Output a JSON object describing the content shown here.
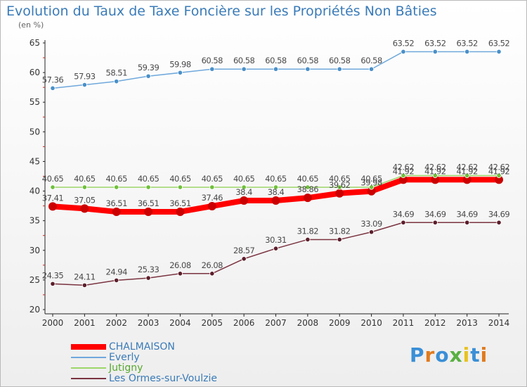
{
  "header": {
    "title": "Evolution du Taux de Taxe Foncière sur les Propriétés Non Bâties",
    "unit": "(en %)"
  },
  "logo": {
    "text": "Proxiti",
    "colors": [
      "#3a8fd6",
      "#e07b1f",
      "#3a8fd6",
      "#58b040",
      "#e8c21f",
      "#3a8fd6",
      "#e07b1f"
    ]
  },
  "chart_data": {
    "type": "line",
    "title": "Evolution du Taux de Taxe Foncière sur les Propriétés Non Bâties",
    "ylabel": "(en %)",
    "xlabel": "",
    "ylim": [
      20,
      65
    ],
    "yticks": [
      20,
      25,
      30,
      35,
      40,
      45,
      50,
      55,
      60,
      65
    ],
    "grid": false,
    "legend_position": "bottom-left",
    "categories": [
      "2000",
      "2001",
      "2002",
      "2003",
      "2004",
      "2005",
      "2006",
      "2007",
      "2008",
      "2009",
      "2010",
      "2011",
      "2012",
      "2013",
      "2014"
    ],
    "series": [
      {
        "name": "CHALMAISON",
        "color": "#ff0000",
        "marker_color": "#cc0000",
        "label_color": "#4a4a4a",
        "width": 8,
        "values": [
          37.41,
          37.05,
          36.51,
          36.51,
          36.51,
          37.46,
          38.4,
          38.4,
          38.86,
          39.62,
          39.98,
          41.92,
          41.92,
          41.92,
          41.92
        ],
        "labels": [
          "37.41",
          "37.05",
          "36.51",
          "36.51",
          "36.51",
          "37.46",
          "38.4",
          "38.4",
          "38.86",
          "39.62",
          "39.98",
          "41.92",
          "41.92",
          "41.92",
          "41.92"
        ]
      },
      {
        "name": "Everly",
        "color": "#6fa8dc",
        "marker_color": "#4a90c8",
        "label_color": "#4a4a4a",
        "width": 1.5,
        "values": [
          57.36,
          57.93,
          58.51,
          59.39,
          59.98,
          60.58,
          60.58,
          60.58,
          60.58,
          60.58,
          60.58,
          63.52,
          63.52,
          63.52,
          63.52
        ],
        "labels": [
          "57.36",
          "57.93",
          "58.51",
          "59.39",
          "59.98",
          "60.58",
          "60.58",
          "60.58",
          "60.58",
          "60.58",
          "60.58",
          "63.52",
          "63.52",
          "63.52",
          "63.52"
        ]
      },
      {
        "name": "Jutigny",
        "color": "#9dd66a",
        "marker_color": "#6fbf3a",
        "label_color": "#4a4a4a",
        "width": 1.5,
        "values": [
          40.65,
          40.65,
          40.65,
          40.65,
          40.65,
          40.65,
          40.65,
          40.65,
          40.65,
          40.65,
          40.65,
          42.62,
          42.62,
          42.62,
          42.62
        ],
        "labels": [
          "40.65",
          "40.65",
          "40.65",
          "40.65",
          "40.65",
          "40.65",
          "40.65",
          "40.65",
          "40.65",
          "40.65",
          "40.65",
          "42.62",
          "42.62",
          "42.62",
          "42.62"
        ]
      },
      {
        "name": "Les Ormes-sur-Voulzie",
        "color": "#7a3340",
        "marker_color": "#5c1e2a",
        "label_color": "#4a4a4a",
        "width": 1.5,
        "values": [
          24.35,
          24.11,
          24.94,
          25.33,
          26.08,
          26.08,
          28.57,
          30.31,
          31.82,
          31.82,
          33.09,
          34.69,
          34.69,
          34.69,
          34.69
        ],
        "labels": [
          "24.35",
          "24.11",
          "24.94",
          "25.33",
          "26.08",
          "26.08",
          "28.57",
          "30.31",
          "31.82",
          "31.82",
          "33.09",
          "34.69",
          "34.69",
          "34.69",
          "34.69"
        ]
      }
    ]
  }
}
